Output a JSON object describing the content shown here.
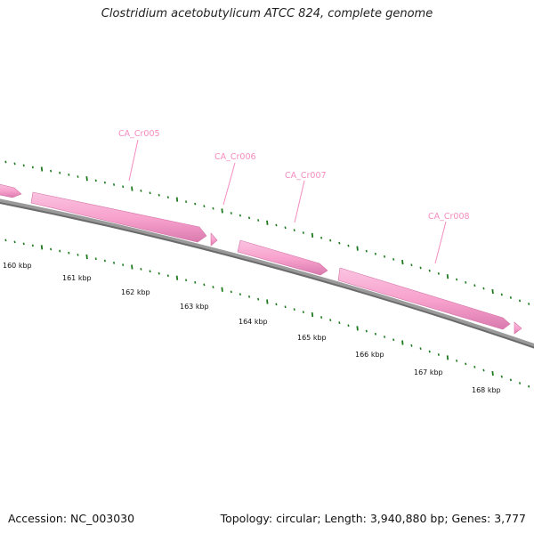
{
  "title": "Clostridium acetobutylicum ATCC 824, complete genome",
  "footer": {
    "accession_label": "Accession:",
    "accession": "NC_003030",
    "topology_label": "Topology:",
    "topology": "circular",
    "length_label": "Length:",
    "length": "3,940,880 bp",
    "genes_label": "Genes:",
    "genes": "3,777"
  },
  "kbp_labels": [
    "160 kbp",
    "161 kbp",
    "162 kbp",
    "163 kbp",
    "164 kbp",
    "165 kbp",
    "166 kbp",
    "167 kbp",
    "168 kbp"
  ],
  "gene_labels": [
    "CA_Cr005",
    "CA_Cr006",
    "CA_Cr007",
    "CA_Cr008"
  ],
  "colors": {
    "gene_fill": "#f8a3cf",
    "gene_edge": "#d472a6",
    "gene_label": "#f48cbf",
    "backbone": "#7a7a7a",
    "tick": "#1f7a1f",
    "text": "#111111"
  }
}
